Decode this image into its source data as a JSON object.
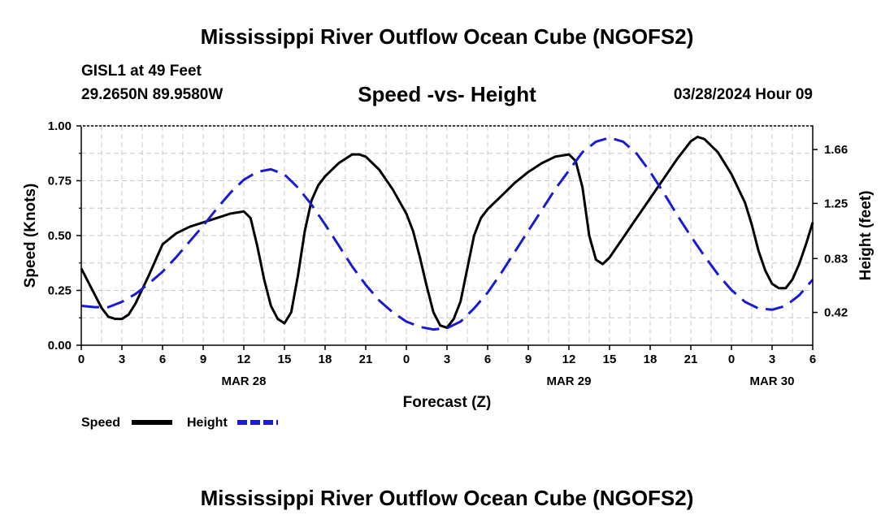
{
  "page": {
    "title_top": "Mississippi River Outflow Ocean Cube (NGOFS2)",
    "title_bottom": "Mississippi River Outflow Ocean Cube (NGOFS2)",
    "station": "GISL1 at 49 Feet",
    "coords": "29.2650N  89.9580W",
    "datetime": "03/28/2024 Hour 09"
  },
  "chart_data": {
    "type": "line",
    "title": "Speed -vs- Height",
    "xlabel": "Forecast (Z)",
    "ylabel": "Speed (Knots)",
    "y2label": "Height (feet)",
    "x_unit": "hours from 00Z MAR 28",
    "xlim": [
      0,
      54
    ],
    "ylim": [
      0,
      1
    ],
    "y2lim": [
      0.17,
      1.84
    ],
    "grid": true,
    "x_ticks": [
      0,
      3,
      6,
      9,
      12,
      15,
      18,
      21,
      24,
      27,
      30,
      33,
      36,
      39,
      42,
      45,
      48,
      51,
      54
    ],
    "x_tick_labels": [
      "0",
      "3",
      "6",
      "9",
      "12",
      "15",
      "18",
      "21",
      "0",
      "3",
      "6",
      "9",
      "12",
      "15",
      "18",
      "21",
      "0",
      "3",
      "6"
    ],
    "y_ticks": [
      0,
      0.25,
      0.5,
      0.75,
      1.0
    ],
    "y_tick_labels": [
      "0.00",
      "0.25",
      "0.50",
      "0.75",
      "1.00"
    ],
    "y2_ticks": [
      0.42,
      0.83,
      1.25,
      1.66
    ],
    "y2_tick_labels": [
      "0.42",
      "0.83",
      "1.25",
      "1.66"
    ],
    "date_labels": [
      {
        "x": 12,
        "label": "MAR 28"
      },
      {
        "x": 36,
        "label": "MAR 29"
      },
      {
        "x": 51,
        "label": "MAR 30"
      }
    ],
    "legend_position": "bottom-left",
    "series": [
      {
        "name": "Speed",
        "axis": "left",
        "color": "#000000",
        "dash": "solid",
        "x": [
          0,
          0.5,
          1,
          1.5,
          2,
          2.5,
          3,
          3.5,
          4,
          5,
          6,
          7,
          8,
          9,
          10,
          11,
          12,
          12.5,
          13,
          13.5,
          14,
          14.5,
          15,
          15.5,
          16,
          16.5,
          17,
          17.5,
          18,
          19,
          20,
          20.5,
          21,
          22,
          23,
          24,
          24.5,
          25,
          25.5,
          26,
          26.5,
          27,
          27.5,
          28,
          28.5,
          29,
          29.5,
          30,
          31,
          32,
          33,
          34,
          35,
          36,
          36.5,
          37,
          37.5,
          38,
          38.5,
          39,
          40,
          41,
          42,
          43,
          44,
          45,
          45.5,
          46,
          47,
          48,
          49,
          49.5,
          50,
          50.5,
          51,
          51.5,
          52,
          52.5,
          53,
          53.5,
          54
        ],
        "values": [
          0.35,
          0.29,
          0.23,
          0.17,
          0.13,
          0.12,
          0.12,
          0.14,
          0.19,
          0.32,
          0.46,
          0.51,
          0.54,
          0.56,
          0.58,
          0.6,
          0.61,
          0.58,
          0.45,
          0.3,
          0.18,
          0.12,
          0.1,
          0.15,
          0.32,
          0.52,
          0.66,
          0.73,
          0.77,
          0.83,
          0.87,
          0.87,
          0.86,
          0.8,
          0.71,
          0.6,
          0.52,
          0.4,
          0.27,
          0.15,
          0.09,
          0.08,
          0.12,
          0.2,
          0.35,
          0.5,
          0.58,
          0.62,
          0.68,
          0.74,
          0.79,
          0.83,
          0.86,
          0.87,
          0.84,
          0.72,
          0.5,
          0.39,
          0.37,
          0.4,
          0.49,
          0.58,
          0.67,
          0.76,
          0.85,
          0.93,
          0.95,
          0.94,
          0.88,
          0.78,
          0.65,
          0.55,
          0.43,
          0.34,
          0.28,
          0.26,
          0.26,
          0.3,
          0.37,
          0.46,
          0.56
        ]
      },
      {
        "name": "Height",
        "axis": "right",
        "color": "#1a1ad2",
        "dash": "dashed",
        "x": [
          0,
          1,
          2,
          3,
          4,
          5,
          6,
          7,
          8,
          9,
          10,
          11,
          12,
          13,
          14,
          15,
          16,
          17,
          18,
          19,
          20,
          21,
          22,
          23,
          24,
          25,
          26,
          27,
          28,
          29,
          30,
          31,
          32,
          33,
          34,
          35,
          36,
          37,
          38,
          39,
          40,
          41,
          42,
          43,
          44,
          45,
          46,
          47,
          48,
          49,
          50,
          51,
          52,
          53,
          54
        ],
        "values": [
          0.47,
          0.46,
          0.46,
          0.5,
          0.56,
          0.64,
          0.73,
          0.84,
          0.96,
          1.08,
          1.21,
          1.33,
          1.43,
          1.49,
          1.51,
          1.47,
          1.37,
          1.24,
          1.09,
          0.93,
          0.77,
          0.63,
          0.51,
          0.42,
          0.35,
          0.31,
          0.29,
          0.3,
          0.35,
          0.45,
          0.57,
          0.72,
          0.88,
          1.04,
          1.2,
          1.36,
          1.5,
          1.64,
          1.72,
          1.75,
          1.72,
          1.63,
          1.49,
          1.33,
          1.16,
          1.0,
          0.85,
          0.71,
          0.59,
          0.5,
          0.45,
          0.44,
          0.47,
          0.55,
          0.67
        ]
      }
    ]
  }
}
